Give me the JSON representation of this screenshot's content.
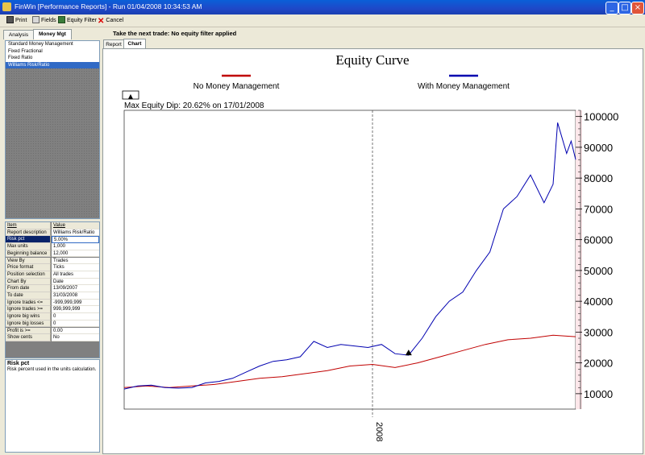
{
  "window": {
    "title": "FinWin  [Performance Reports]  -  Run 01/04/2008 10:34:53 AM",
    "min_label": "_",
    "max_label": "□",
    "close_label": "×"
  },
  "toolbar": {
    "print": "Print",
    "fields": "Fields",
    "equity_filter": "Equity Filter",
    "cancel": "Cancel"
  },
  "left_tabs": [
    "Analysis",
    "Money Mgt"
  ],
  "mm_methods": [
    "Standard Money Management",
    "Fixed Fractional",
    "Fixed Ratio",
    "Williams Risk/Ratio"
  ],
  "selected_method": "Williams Risk/Ratio",
  "properties": {
    "header": {
      "k": "Item",
      "v": "Value"
    },
    "rows": [
      {
        "k": "Report description",
        "v": "Williams Risk/Ratio"
      },
      {
        "k": "Risk pct",
        "v": "5.00%"
      },
      {
        "k": "Max units",
        "v": "1,000"
      },
      {
        "k": "Beginning balance",
        "v": "12,000"
      },
      {
        "k": "View By",
        "v": "Trades"
      },
      {
        "k": "Price format",
        "v": "Ticks"
      },
      {
        "k": "Position selection",
        "v": "All trades"
      },
      {
        "k": "Chart By",
        "v": "Date"
      },
      {
        "k": "From date",
        "v": "13/09/2007"
      },
      {
        "k": "To date",
        "v": "31/03/2008"
      },
      {
        "k": "Ignore trades <=",
        "v": "-999,999,999"
      },
      {
        "k": "Ignore trades >=",
        "v": "999,999,999"
      },
      {
        "k": "Ignore big wins",
        "v": "0"
      },
      {
        "k": "Ignore big losses",
        "v": "0"
      },
      {
        "k": "Profit is >=",
        "v": "0.00"
      },
      {
        "k": "Show cents",
        "v": "No"
      }
    ]
  },
  "help": {
    "title": "Risk pct",
    "text": "Risk percent used in the units calculation."
  },
  "info_line": "Take the next trade: No equity filter applied",
  "right_tabs": [
    "Report",
    "Chart"
  ],
  "chart_data": {
    "type": "line",
    "title": "Equity Curve",
    "legend": [
      "No Money Management",
      "With Money Management"
    ],
    "colors": {
      "no_mm": "#c00000",
      "with_mm": "#0000b0",
      "accent": "#0a246a"
    },
    "max_dip": "Max Equity Dip: 20.62% on 17/01/2008",
    "dip_button": "▲",
    "ylim": [
      5000,
      102000
    ],
    "yticks": [
      10000,
      20000,
      30000,
      40000,
      50000,
      60000,
      70000,
      80000,
      90000,
      100000
    ],
    "ytick_labels": [
      "10000",
      "20000",
      "30000",
      "40000",
      "50000",
      "60000",
      "70000",
      "80000",
      "90000",
      "100000"
    ],
    "xlim": [
      0,
      100
    ],
    "xtick_label": "2008",
    "xtick_at": 55,
    "dip_marker": [
      63,
      22500
    ],
    "series": [
      {
        "name": "No Money Management",
        "x": [
          0,
          5,
          10,
          15,
          20,
          25,
          30,
          35,
          40,
          45,
          50,
          55,
          60,
          65,
          70,
          75,
          80,
          85,
          90,
          95,
          100
        ],
        "y": [
          12000,
          12500,
          12000,
          12500,
          13000,
          14000,
          15000,
          15500,
          16500,
          17500,
          19000,
          19500,
          18500,
          20000,
          22000,
          24000,
          26000,
          27500,
          28000,
          29000,
          28500
        ]
      },
      {
        "name": "With Money Management",
        "x": [
          0,
          3,
          6,
          9,
          12,
          15,
          18,
          21,
          24,
          27,
          30,
          33,
          36,
          39,
          42,
          45,
          48,
          51,
          54,
          57,
          60,
          63,
          66,
          69,
          72,
          75,
          78,
          81,
          84,
          87,
          90,
          93,
          95,
          96,
          98,
          99,
          100
        ],
        "y": [
          11500,
          12500,
          12800,
          12000,
          11800,
          12000,
          13500,
          14000,
          15000,
          17000,
          19000,
          20500,
          21000,
          22000,
          27000,
          25000,
          26000,
          25500,
          25000,
          26000,
          23000,
          22500,
          28000,
          35000,
          40000,
          43000,
          50000,
          56000,
          70000,
          74000,
          81000,
          72000,
          78000,
          98000,
          88000,
          92000,
          86000
        ]
      }
    ]
  }
}
